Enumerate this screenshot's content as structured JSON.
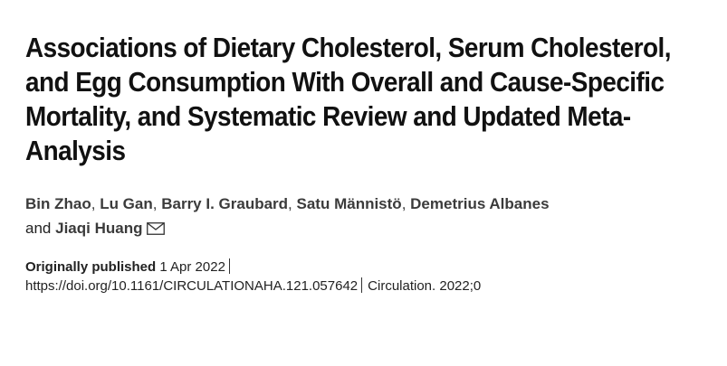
{
  "article": {
    "title": "Associations of Dietary Cholesterol, Serum Cholesterol, and Egg Consumption With Overall and Cause-Specific Mortality, and Systematic Review and Updated Meta-Analysis",
    "authors": [
      "Bin Zhao",
      "Lu Gan",
      "Barry I. Graubard",
      "Satu Männistö",
      "Demetrius Albanes",
      "Jiaqi Huang"
    ],
    "author_separator": ",",
    "and_label": "and",
    "corresponding_icon": "envelope-icon",
    "published_label": "Originally published",
    "published_date": "1 Apr 2022",
    "doi": "https://doi.org/10.1161/CIRCULATIONAHA.121.057642",
    "citation": "Circulation. 2022;0"
  }
}
